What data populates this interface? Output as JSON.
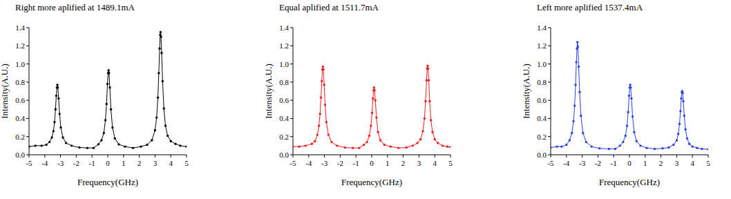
{
  "chart_data": [
    {
      "type": "scatter",
      "title": "Right more aplified at 1489.1mA",
      "x_label": "Frequency(GHz)",
      "y_label": "Intensity(A.U.)",
      "color": "#000000",
      "marker": "circle",
      "line_style": "solid",
      "xlim": [
        -5,
        5
      ],
      "xticks": [
        -5,
        -4,
        -3,
        -2,
        -1,
        0,
        1,
        2,
        3,
        4,
        5
      ],
      "ylim": [
        0,
        1.4
      ],
      "yticks": [
        {
          "value": 0,
          "label": "0.0"
        },
        0.2,
        0.4,
        0.6,
        0.8,
        {
          "value": 1,
          "label": "1.0"
        },
        1.2,
        1.4
      ],
      "x": [
        -5,
        -4.6,
        -4.2,
        -3.9,
        -3.7,
        -3.55,
        -3.45,
        -3.38,
        -3.32,
        -3.27,
        -3.23,
        -3.2,
        -3.17,
        -3.12,
        -3.06,
        -2.98,
        -2.85,
        -2.65,
        -2.3,
        -1.8,
        -1.3,
        -0.9,
        -0.6,
        -0.4,
        -0.25,
        -0.15,
        -0.08,
        -0.02,
        0.02,
        0.05,
        0.08,
        0.13,
        0.2,
        0.3,
        0.45,
        0.7,
        1.1,
        1.6,
        2.1,
        2.5,
        2.8,
        3.0,
        3.1,
        3.18,
        3.24,
        3.29,
        3.33,
        3.35,
        3.38,
        3.42,
        3.48,
        3.56,
        3.66,
        3.8,
        4.0,
        4.3,
        4.6,
        5
      ],
      "values": [
        0.09,
        0.1,
        0.1,
        0.11,
        0.14,
        0.19,
        0.26,
        0.36,
        0.5,
        0.65,
        0.74,
        0.77,
        0.74,
        0.62,
        0.45,
        0.3,
        0.19,
        0.13,
        0.1,
        0.08,
        0.075,
        0.075,
        0.115,
        0.16,
        0.24,
        0.38,
        0.56,
        0.78,
        0.9,
        0.93,
        0.9,
        0.74,
        0.5,
        0.3,
        0.18,
        0.115,
        0.09,
        0.075,
        0.09,
        0.11,
        0.16,
        0.27,
        0.41,
        0.63,
        0.9,
        1.17,
        1.32,
        1.35,
        1.3,
        1.12,
        0.81,
        0.51,
        0.32,
        0.21,
        0.15,
        0.12,
        0.1,
        0.09
      ]
    },
    {
      "type": "scatter",
      "title": "Equal aplified at 1511.7mA",
      "x_label": "Frequency(GHz)",
      "y_label": "Intensity(A.U.)",
      "color": "#ee1c1c",
      "marker": "circle",
      "line_style": "solid",
      "xlim": [
        -5,
        5
      ],
      "xticks": [
        -5,
        -4,
        -3,
        -2,
        -1,
        0,
        1,
        2,
        3,
        4,
        5
      ],
      "ylim": [
        0,
        1.4
      ],
      "yticks": [
        {
          "value": 0,
          "label": "0.0"
        },
        0.2,
        0.4,
        0.6,
        0.8,
        {
          "value": 1,
          "label": "1.0"
        },
        1.2,
        1.4
      ],
      "x": [
        -5,
        -4.6,
        -4.2,
        -3.8,
        -3.6,
        -3.45,
        -3.35,
        -3.28,
        -3.22,
        -3.17,
        -3.13,
        -3.1,
        -3.07,
        -3.02,
        -2.96,
        -2.88,
        -2.75,
        -2.55,
        -2.2,
        -1.7,
        -1.2,
        -0.8,
        -0.5,
        -0.3,
        -0.15,
        -0.05,
        0.02,
        0.08,
        0.12,
        0.15,
        0.18,
        0.23,
        0.3,
        0.4,
        0.55,
        0.8,
        1.2,
        1.7,
        2.2,
        2.6,
        2.9,
        3.1,
        3.25,
        3.35,
        3.42,
        3.48,
        3.52,
        3.55,
        3.58,
        3.62,
        3.68,
        3.76,
        3.86,
        4.0,
        4.2,
        4.5,
        4.8,
        5
      ],
      "values": [
        0.09,
        0.09,
        0.1,
        0.12,
        0.15,
        0.22,
        0.32,
        0.45,
        0.63,
        0.81,
        0.94,
        0.97,
        0.94,
        0.77,
        0.55,
        0.36,
        0.22,
        0.14,
        0.1,
        0.08,
        0.075,
        0.075,
        0.11,
        0.14,
        0.21,
        0.32,
        0.46,
        0.62,
        0.71,
        0.74,
        0.71,
        0.6,
        0.41,
        0.25,
        0.16,
        0.11,
        0.09,
        0.075,
        0.08,
        0.1,
        0.13,
        0.17,
        0.26,
        0.4,
        0.59,
        0.82,
        0.95,
        0.98,
        0.95,
        0.82,
        0.59,
        0.38,
        0.25,
        0.17,
        0.13,
        0.1,
        0.09,
        0.085
      ]
    },
    {
      "type": "scatter",
      "title": "Left more aplified 1537.4mA",
      "x_label": "Frequency(GHz)",
      "y_label": "Intensity(A.U.)",
      "color": "#2a3fe0",
      "marker": "circle",
      "line_style": "solid",
      "xlim": [
        -5,
        5
      ],
      "xticks": [
        -5,
        -4,
        -3,
        -2,
        -1,
        0,
        1,
        2,
        3,
        4,
        5
      ],
      "ylim": [
        0,
        1.4
      ],
      "yticks": [
        {
          "value": 0,
          "label": "0.0"
        },
        0.2,
        0.4,
        0.6,
        0.8,
        {
          "value": 1,
          "label": "1.0"
        },
        1.2,
        1.4
      ],
      "x": [
        -5,
        -4.6,
        -4.3,
        -4.0,
        -3.8,
        -3.65,
        -3.55,
        -3.48,
        -3.42,
        -3.37,
        -3.33,
        -3.3,
        -3.27,
        -3.22,
        -3.16,
        -3.08,
        -2.95,
        -2.75,
        -2.4,
        -1.9,
        -1.3,
        -0.9,
        -0.6,
        -0.4,
        -0.25,
        -0.15,
        -0.08,
        -0.02,
        0.02,
        0.05,
        0.08,
        0.13,
        0.2,
        0.3,
        0.45,
        0.7,
        1.1,
        1.6,
        2.1,
        2.5,
        2.8,
        3.0,
        3.1,
        3.18,
        3.24,
        3.29,
        3.33,
        3.35,
        3.38,
        3.42,
        3.48,
        3.56,
        3.66,
        3.8,
        4.0,
        4.3,
        4.6,
        5
      ],
      "values": [
        0.08,
        0.09,
        0.09,
        0.11,
        0.16,
        0.24,
        0.37,
        0.54,
        0.77,
        1.02,
        1.17,
        1.24,
        1.19,
        0.97,
        0.69,
        0.43,
        0.24,
        0.14,
        0.09,
        0.07,
        0.065,
        0.065,
        0.1,
        0.14,
        0.21,
        0.32,
        0.47,
        0.65,
        0.74,
        0.77,
        0.74,
        0.62,
        0.42,
        0.25,
        0.15,
        0.1,
        0.075,
        0.065,
        0.07,
        0.08,
        0.11,
        0.16,
        0.23,
        0.34,
        0.48,
        0.62,
        0.69,
        0.7,
        0.68,
        0.59,
        0.43,
        0.28,
        0.18,
        0.12,
        0.09,
        0.075,
        0.065,
        0.06
      ]
    }
  ]
}
